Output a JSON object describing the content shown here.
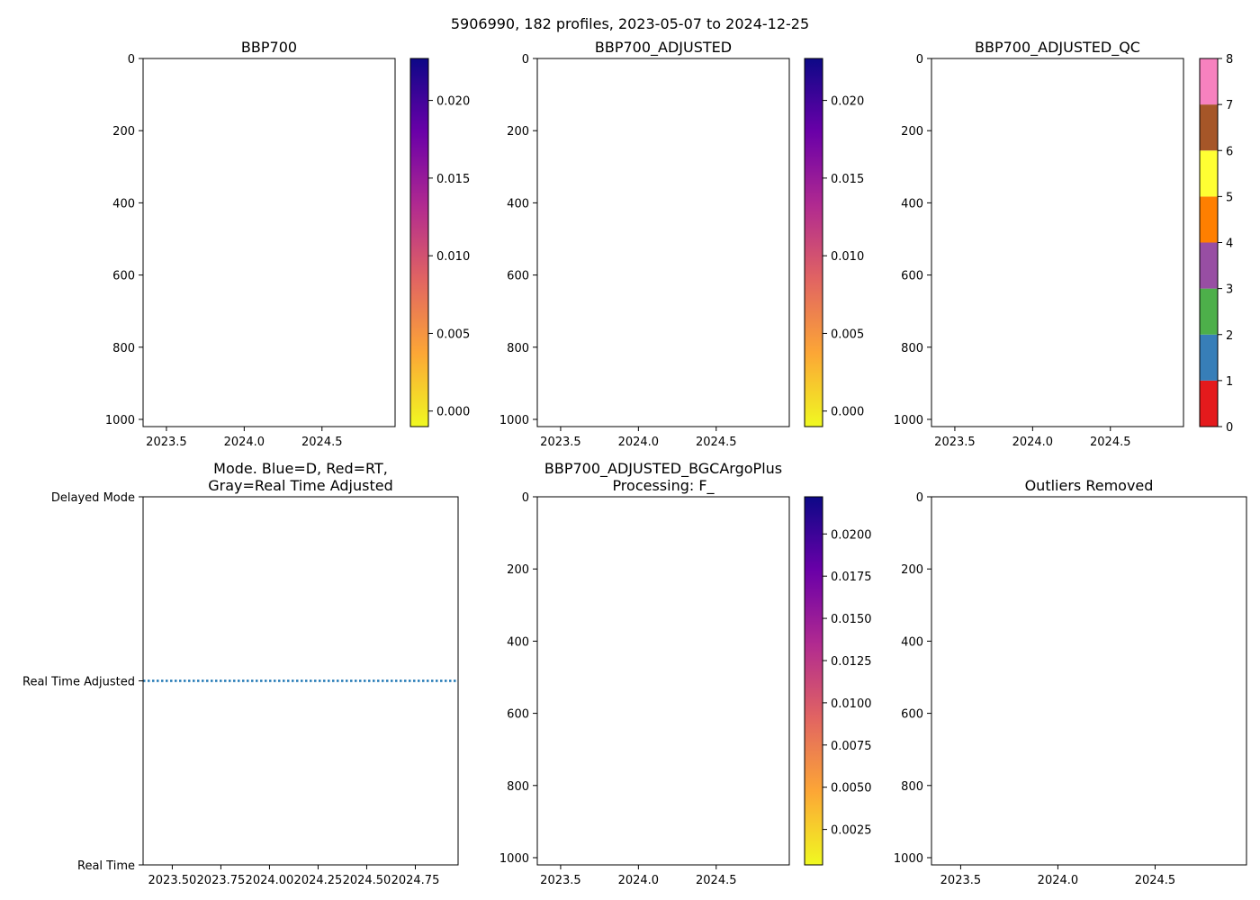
{
  "figure_title": "5906990, 182 profiles, 2023-05-07 to 2024-12-25",
  "chart_data": [
    {
      "id": "bbp700",
      "type": "heatmap",
      "title": "BBP700",
      "xlim": [
        2023.35,
        2024.97
      ],
      "ylim": [
        1020,
        0
      ],
      "xticks": [
        2023.5,
        2024.0,
        2024.5
      ],
      "xtick_labels": [
        "2023.5",
        "2024.0",
        "2024.5"
      ],
      "yticks": [
        0,
        200,
        400,
        600,
        800,
        1000
      ],
      "ytick_labels": [
        "0",
        "200",
        "400",
        "600",
        "800",
        "1000"
      ],
      "data": [],
      "colorbar": {
        "cmap": "plasma_r",
        "range": [
          -0.001,
          0.0227
        ],
        "ticks": [
          0.0,
          0.005,
          0.01,
          0.015,
          0.02
        ],
        "tick_labels": [
          "0.000",
          "0.005",
          "0.010",
          "0.015",
          "0.020"
        ]
      }
    },
    {
      "id": "bbp700-adjusted",
      "type": "heatmap",
      "title": "BBP700_ADJUSTED",
      "xlim": [
        2023.35,
        2024.97
      ],
      "ylim": [
        1020,
        0
      ],
      "xticks": [
        2023.5,
        2024.0,
        2024.5
      ],
      "xtick_labels": [
        "2023.5",
        "2024.0",
        "2024.5"
      ],
      "yticks": [
        0,
        200,
        400,
        600,
        800,
        1000
      ],
      "ytick_labels": [
        "0",
        "200",
        "400",
        "600",
        "800",
        "1000"
      ],
      "data": [],
      "colorbar": {
        "cmap": "plasma_r",
        "range": [
          -0.001,
          0.0227
        ],
        "ticks": [
          0.0,
          0.005,
          0.01,
          0.015,
          0.02
        ],
        "tick_labels": [
          "0.000",
          "0.005",
          "0.010",
          "0.015",
          "0.020"
        ]
      }
    },
    {
      "id": "bbp700-adjusted-qc",
      "type": "heatmap",
      "title": "BBP700_ADJUSTED_QC",
      "xlim": [
        2023.35,
        2024.97
      ],
      "ylim": [
        1020,
        0
      ],
      "xticks": [
        2023.5,
        2024.0,
        2024.5
      ],
      "xtick_labels": [
        "2023.5",
        "2024.0",
        "2024.5"
      ],
      "yticks": [
        0,
        200,
        400,
        600,
        800,
        1000
      ],
      "ytick_labels": [
        "0",
        "200",
        "400",
        "600",
        "800",
        "1000"
      ],
      "data": [],
      "colorbar": {
        "cmap": "qc_categorical",
        "range": [
          0,
          8
        ],
        "ticks": [
          0,
          1,
          2,
          3,
          4,
          5,
          6,
          7,
          8
        ],
        "tick_labels": [
          "0",
          "1",
          "2",
          "3",
          "4",
          "5",
          "6",
          "7",
          "8"
        ],
        "categories": [
          "#e41a1c",
          "#377eb8",
          "#4daf4a",
          "#984ea3",
          "#ff7f00",
          "#ffff33",
          "#a65628",
          "#f781bf",
          "#999999"
        ]
      }
    },
    {
      "id": "mode",
      "type": "line",
      "title": "Mode. Blue=D, Red=RT,\nGray=Real Time Adjusted",
      "xlim": [
        2023.35,
        2024.97
      ],
      "ylim": [
        0,
        2
      ],
      "xticks": [
        2023.5,
        2023.75,
        2024.0,
        2024.25,
        2024.5,
        2024.75
      ],
      "xtick_labels": [
        "2023.50",
        "2023.75",
        "2024.00",
        "2024.25",
        "2024.50",
        "2024.75"
      ],
      "yticks": [
        2,
        1,
        0
      ],
      "ytick_labels": [
        "Delayed Mode",
        "Real Time Adjusted",
        "Real Time"
      ],
      "series": [
        {
          "name": "mode",
          "color": "#1f77b4",
          "style": "dotted",
          "x": [
            2023.35,
            2024.97
          ],
          "y": [
            1,
            1
          ]
        }
      ]
    },
    {
      "id": "bgcargoplus",
      "type": "heatmap",
      "title": "BBP700_ADJUSTED_BGCArgoPlus\nProcessing: F_",
      "xlim": [
        2023.35,
        2024.97
      ],
      "ylim": [
        1020,
        0
      ],
      "xticks": [
        2023.5,
        2024.0,
        2024.5
      ],
      "xtick_labels": [
        "2023.5",
        "2024.0",
        "2024.5"
      ],
      "yticks": [
        0,
        200,
        400,
        600,
        800,
        1000
      ],
      "ytick_labels": [
        "0",
        "200",
        "400",
        "600",
        "800",
        "1000"
      ],
      "data": [],
      "colorbar": {
        "cmap": "plasma_r",
        "range": [
          0.0004,
          0.0222
        ],
        "ticks": [
          0.0025,
          0.005,
          0.0075,
          0.01,
          0.0125,
          0.015,
          0.0175,
          0.02
        ],
        "tick_labels": [
          "0.0025",
          "0.0050",
          "0.0075",
          "0.0100",
          "0.0125",
          "0.0150",
          "0.0175",
          "0.0200"
        ]
      }
    },
    {
      "id": "outliers",
      "type": "scatter",
      "title": "Outliers Removed",
      "xlim": [
        2023.35,
        2024.97
      ],
      "ylim": [
        1020,
        0
      ],
      "xticks": [
        2023.5,
        2024.0,
        2024.5
      ],
      "xtick_labels": [
        "2023.5",
        "2024.0",
        "2024.5"
      ],
      "yticks": [
        0,
        200,
        400,
        600,
        800,
        1000
      ],
      "ytick_labels": [
        "0",
        "200",
        "400",
        "600",
        "800",
        "1000"
      ],
      "data": []
    }
  ]
}
